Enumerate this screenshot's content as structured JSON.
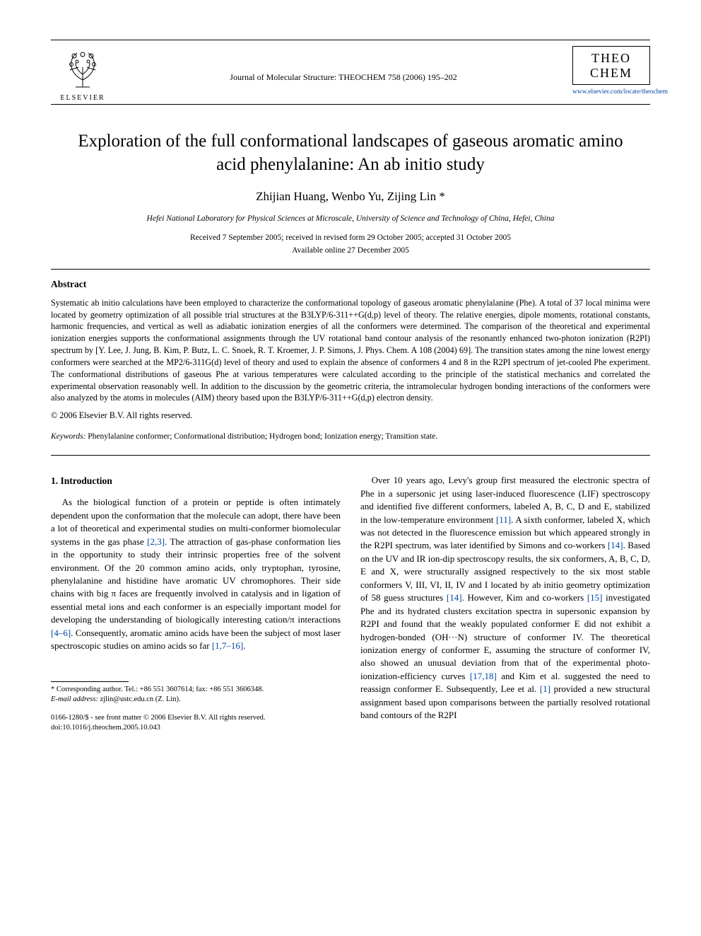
{
  "header": {
    "publisher_name": "ELSEVIER",
    "journal_citation": "Journal of Molecular Structure: THEOCHEM 758 (2006) 195–202",
    "brand_line1": "THEO",
    "brand_line2": "CHEM",
    "brand_url": "www.elsevier.com/locate/theochem"
  },
  "title": "Exploration of the full conformational landscapes of gaseous aromatic amino acid phenylalanine: An ab initio study",
  "authors": "Zhijian Huang, Wenbo Yu, Zijing Lin *",
  "affiliation": "Hefei National Laboratory for Physical Sciences at Microscale, University of Science and Technology of China, Hefei, China",
  "dates_line1": "Received 7 September 2005; received in revised form 29 October 2005; accepted 31 October 2005",
  "dates_line2": "Available online 27 December 2005",
  "abstract": {
    "heading": "Abstract",
    "body": "Systematic ab initio calculations have been employed to characterize the conformational topology of gaseous aromatic phenylalanine (Phe). A total of 37 local minima were located by geometry optimization of all possible trial structures at the B3LYP/6-311++G(d,p) level of theory. The relative energies, dipole moments, rotational constants, harmonic frequencies, and vertical as well as adiabatic ionization energies of all the conformers were determined. The comparison of the theoretical and experimental ionization energies supports the conformational assignments through the UV rotational band contour analysis of the resonantly enhanced two-photon ionization (R2PI) spectrum by [Y. Lee, J. Jung, B. Kim, P. Butz, L. C. Snoek, R. T. Kroemer, J. P. Simons, J. Phys. Chem. A 108 (2004) 69]. The transition states among the nine lowest energy conformers were searched at the MP2/6-311G(d) level of theory and used to explain the absence of conformers 4 and 8 in the R2PI spectrum of jet-cooled Phe experiment. The conformational distributions of gaseous Phe at various temperatures were calculated according to the principle of the statistical mechanics and correlated the experimental observation reasonably well. In addition to the discussion by the geometric criteria, the intramolecular hydrogen bonding interactions of the conformers were also analyzed by the atoms in molecules (AIM) theory based upon the B3LYP/6-311++G(d,p) electron density.",
    "copyright": "© 2006 Elsevier B.V. All rights reserved."
  },
  "keywords": {
    "label": "Keywords:",
    "text": " Phenylalanine conformer; Conformational distribution; Hydrogen bond; Ionization energy; Transition state."
  },
  "intro": {
    "heading": "1. Introduction",
    "left_para": "As the biological function of a protein or peptide is often intimately dependent upon the conformation that the molecule can adopt, there have been a lot of theoretical and experimental studies on multi-conformer biomolecular systems in the gas phase [2,3]. The attraction of gas-phase conformation lies in the opportunity to study their intrinsic properties free of the solvent environment. Of the 20 common amino acids, only tryptophan, tyrosine, phenylalanine and histidine have aromatic UV chromophores. Their side chains with big π faces are frequently involved in catalysis and in ligation of essential metal ions and each conformer is an especially important model for developing the understanding of biologically interesting cation/π interactions [4–6]. Consequently, aromatic amino acids have been the subject of most laser spectroscopic studies on amino acids so far [1,7–16].",
    "right_para": "Over 10 years ago, Levy's group first measured the electronic spectra of Phe in a supersonic jet using laser-induced fluorescence (LIF) spectroscopy and identified five different conformers, labeled A, B, C, D and E, stabilized in the low-temperature environment [11]. A sixth conformer, labeled X, which was not detected in the fluorescence emission but which appeared strongly in the R2PI spectrum, was later identified by Simons and co-workers [14]. Based on the UV and IR ion-dip spectroscopy results, the six conformers, A, B, C, D, E and X, were structurally assigned respectively to the six most stable conformers V, III, VI, II, IV and I located by ab initio geometry optimization of 58 guess structures [14]. However, Kim and co-workers [15] investigated Phe and its hydrated clusters excitation spectra in supersonic expansion by R2PI and found that the weakly populated conformer E did not exhibit a hydrogen-bonded (OH···N) structure of conformer IV. The theoretical ionization energy of conformer E, assuming the structure of conformer IV, also showed an unusual deviation from that of the experimental photo-ionization-efficiency curves [17,18] and Kim et al. suggested the need to reassign conformer E. Subsequently, Lee et al. [1] provided a new structural assignment based upon comparisons between the partially resolved rotational band contours of the R2PI"
  },
  "footnote": {
    "corr": "* Corresponding author. Tel.: +86 551 3607614; fax: +86 551 3606348.",
    "email_label": "E-mail address:",
    "email": " zjlin@ustc.edu.cn (Z. Lin)."
  },
  "footer": {
    "issn": "0166-1280/$ - see front matter © 2006 Elsevier B.V. All rights reserved.",
    "doi": "doi:10.1016/j.theochem.2005.10.043"
  },
  "colors": {
    "link": "#0046a0",
    "text": "#000000",
    "bg": "#ffffff"
  }
}
